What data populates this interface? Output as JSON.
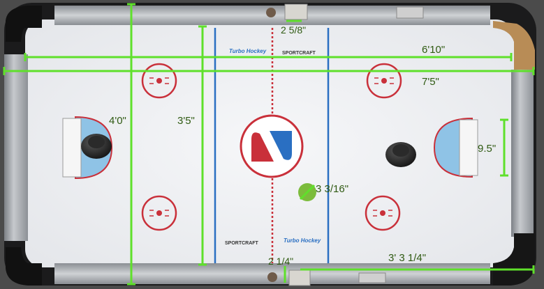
{
  "colors": {
    "measure_line": "#5fe02b",
    "measure_text": "#2f5a12",
    "rink_red": "#c9303a",
    "rink_blue": "#2a6fc2",
    "goal_blue": "#8fc3e6",
    "table_surface": "#f1f2f4",
    "rail_metal": "#a9adb2",
    "puck_green": "#7cbc3c"
  },
  "measurements": {
    "length_outer": "7'5\"",
    "length_inner": "6'10\"",
    "width_outer": "4'0\"",
    "width_inner": "3'5\"",
    "goal_width": "9.5\"",
    "puck_diameter": "3 3/16\"",
    "top_slot": "2 5/8\"",
    "bottom_slot": "2 1/4\"",
    "rail_length": "3' 3 1/4\""
  },
  "brand_marks": {
    "brand_left_top": "Turbo Hockey",
    "brand_right_top": "SPORTCRAFT",
    "brand_left_bottom": "SPORTCRAFT",
    "brand_right_bottom": "Turbo Hockey"
  },
  "icons": {
    "center_logo": "sportcraft-logo",
    "mallet": "air-hockey-mallet",
    "puck": "air-hockey-puck"
  }
}
